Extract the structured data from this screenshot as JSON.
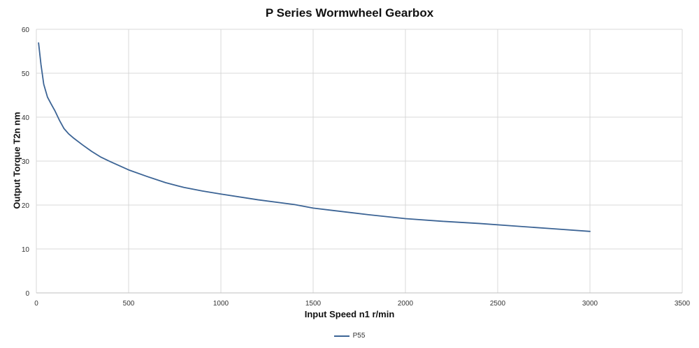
{
  "chart_data": {
    "type": "line",
    "title": "P Series Wormwheel Gearbox",
    "xlabel": "Input Speed n1 r/min",
    "ylabel": "Output Torque T2n nm",
    "xlim": [
      0,
      3500
    ],
    "ylim": [
      0,
      60
    ],
    "xticks": [
      0,
      500,
      1000,
      1500,
      2000,
      2500,
      3000,
      3500
    ],
    "yticks": [
      0,
      10,
      20,
      30,
      40,
      50,
      60
    ],
    "grid": true,
    "legend_position": "bottom-center",
    "series": [
      {
        "name": "P55",
        "color": "#3c6495",
        "x": [
          12,
          25,
          40,
          60,
          80,
          100,
          125,
          150,
          175,
          200,
          250,
          300,
          350,
          400,
          500,
          600,
          700,
          800,
          900,
          1000,
          1200,
          1400,
          1500,
          1600,
          1800,
          2000,
          2200,
          2400,
          2600,
          2800,
          3000
        ],
        "y": [
          56.9,
          52.0,
          47.5,
          44.6,
          43.0,
          41.5,
          39.3,
          37.4,
          36.2,
          35.3,
          33.7,
          32.2,
          30.9,
          29.9,
          28.0,
          26.5,
          25.1,
          24.0,
          23.2,
          22.5,
          21.2,
          20.1,
          19.3,
          18.8,
          17.8,
          16.9,
          16.3,
          15.8,
          15.2,
          14.6,
          14.0
        ]
      }
    ]
  }
}
